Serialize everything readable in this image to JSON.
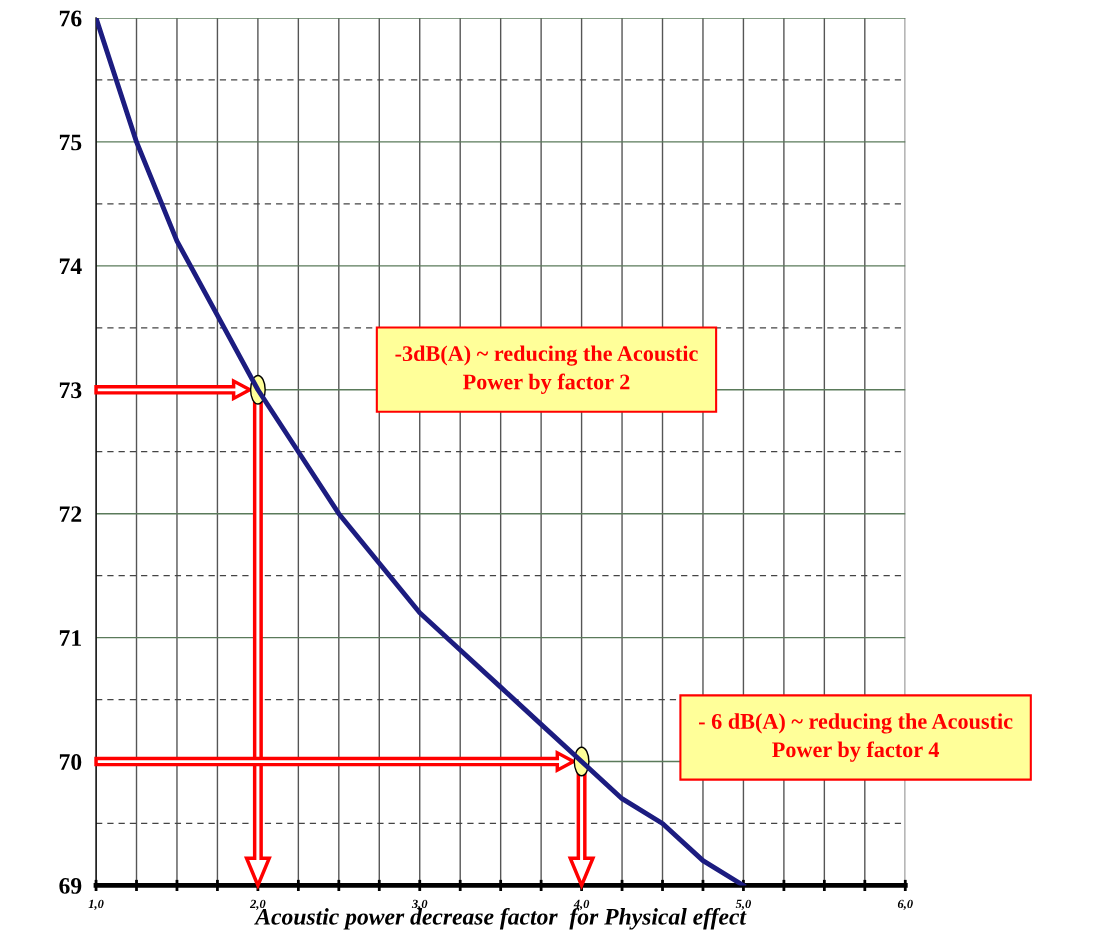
{
  "chart_data": {
    "type": "line",
    "xlabel": "Acoustic power decrease factor  for Physical effect",
    "x": [
      1,
      1.25,
      1.5,
      1.75,
      2,
      2.25,
      2.5,
      2.75,
      3,
      3.25,
      3.5,
      3.75,
      4,
      4.25,
      4.5,
      4.75,
      5
    ],
    "series": [
      {
        "color": "#1c1c80",
        "values": [
          76,
          75.0,
          74.2,
          73.6,
          73.0,
          72.5,
          72.0,
          71.6,
          71.2,
          70.9,
          70.6,
          70.3,
          70.0,
          69.7,
          69.5,
          69.2,
          69.0
        ]
      }
    ],
    "xlim": [
      1,
      6
    ],
    "xticks": [
      {
        "value": 1,
        "label": "1,0"
      },
      {
        "value": 1.25,
        "label": null
      },
      {
        "value": 1.5,
        "label": null
      },
      {
        "value": 1.75,
        "label": null
      },
      {
        "value": 2,
        "label": "2,0"
      },
      {
        "value": 2.25,
        "label": null
      },
      {
        "value": 2.5,
        "label": null
      },
      {
        "value": 2.75,
        "label": null
      },
      {
        "value": 3,
        "label": "3,0"
      },
      {
        "value": 3.25,
        "label": null
      },
      {
        "value": 3.5,
        "label": null
      },
      {
        "value": 3.75,
        "label": null
      },
      {
        "value": 4,
        "label": "4,0"
      },
      {
        "value": 4.25,
        "label": null
      },
      {
        "value": 4.5,
        "label": null
      },
      {
        "value": 4.75,
        "label": null
      },
      {
        "value": 5,
        "label": "5,0"
      },
      {
        "value": 5.25,
        "label": null
      },
      {
        "value": 5.5,
        "label": null
      },
      {
        "value": 5.75,
        "label": null
      },
      {
        "value": 6,
        "label": "6,0"
      }
    ],
    "ylim": [
      69,
      76
    ],
    "yticks": [
      69,
      {
        "value": 69.5,
        "label": null
      },
      70,
      {
        "value": 70.5,
        "label": null
      },
      71,
      {
        "value": 71.5,
        "label": null
      },
      72,
      {
        "value": 72.5,
        "label": null
      },
      73,
      {
        "value": 73.5,
        "label": null
      },
      74,
      {
        "value": 74.5,
        "label": null
      },
      75,
      {
        "value": 75.5,
        "label": null
      },
      76
    ],
    "grid": true,
    "marker": "none",
    "line_style": "solid",
    "legend": false,
    "ref_lines": [
      {
        "axis": "y",
        "value": 73,
        "color": "#ff0000"
      },
      {
        "axis": "x",
        "value": 2,
        "color": "#ff0000"
      },
      {
        "axis": "y",
        "value": 70,
        "color": "#ff0000"
      },
      {
        "axis": "x",
        "value": 4,
        "color": "#ff0000"
      }
    ],
    "annotations": [
      "-3dB(A) ~ reducing the Acoustic\nPower by factor 2",
      "- 6 dB(A) ~ reducing the Acoustic\nPower by factor 4"
    ]
  }
}
